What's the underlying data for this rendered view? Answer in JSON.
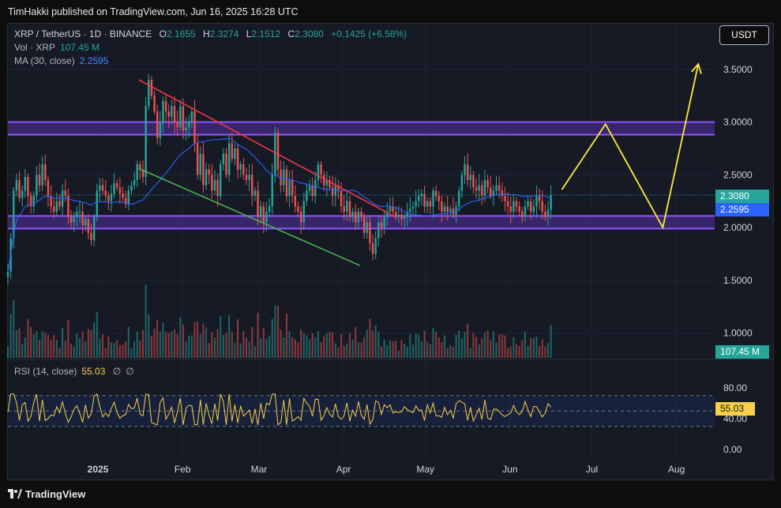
{
  "header": {
    "published_line": "TimHakki published on TradingView.com, Jun 16, 2025 16:28 UTC"
  },
  "legend": {
    "symbol": "XRP / TetherUS · 1D · BINANCE",
    "o_label": "O",
    "o_value": "2.1655",
    "h_label": "H",
    "h_value": "2.3274",
    "l_label": "L",
    "l_value": "2.1512",
    "c_label": "C",
    "c_value": "2.3080",
    "change": "+0.1425 (+6.58%)",
    "vol_label": "Vol · XRP",
    "vol_value": "107.45 M",
    "ma_label": "MA (30, close)",
    "ma_value": "2.2595",
    "rsi_label": "RSI (14, close)",
    "rsi_value": "55.03",
    "rsi_extra1": "∅",
    "rsi_extra2": "∅"
  },
  "currency_button": "USDT",
  "price_tags": {
    "last_price": "2.3080",
    "ma_value": "2.2595",
    "volume": "107.45 M",
    "rsi": "55.03"
  },
  "colors": {
    "up": "#26a69a",
    "down": "#ef5350",
    "ma": "#2962ff",
    "zone": "#7b3fe4",
    "red_line": "#f23645",
    "green_line": "#4caf50",
    "projection": "#ffeb3b",
    "rsi": "#f7d046"
  },
  "footer": {
    "brand": "TradingView"
  },
  "chart_data": {
    "type": "candlestick",
    "title": "XRP / TetherUS · 1D · BINANCE",
    "price_axis": {
      "ticks": [
        "3.5000",
        "3.0000",
        "2.5000",
        "2.0000",
        "1.5000",
        "1.0000"
      ],
      "values": [
        3.5,
        3.0,
        2.5,
        2.0,
        1.5,
        1.0
      ]
    },
    "x_axis": {
      "labels": [
        "2025",
        "Feb",
        "Mar",
        "Apr",
        "May",
        "Jun",
        "Jul",
        "Aug"
      ],
      "dates": [
        "2025-01-01",
        "2025-02-01",
        "2025-03-01",
        "2025-04-01",
        "2025-05-01",
        "2025-06-01",
        "2025-07-01",
        "2025-08-01"
      ],
      "start_date": "2024-11-29",
      "end_date": "2025-08-15"
    },
    "closes": [
      1.58,
      1.9,
      2.35,
      2.45,
      2.28,
      2.35,
      2.48,
      2.3,
      2.2,
      2.3,
      2.5,
      2.4,
      2.6,
      2.45,
      2.3,
      2.2,
      2.15,
      2.25,
      2.2,
      2.35,
      2.3,
      2.1,
      2.05,
      2.1,
      2.15,
      2.15,
      2.02,
      2.08,
      1.95,
      1.88,
      2.1,
      2.35,
      2.4,
      2.35,
      2.3,
      2.25,
      2.32,
      2.42,
      2.38,
      2.32,
      2.28,
      2.22,
      2.35,
      2.4,
      2.45,
      2.6,
      2.55,
      2.48,
      3.15,
      3.4,
      3.25,
      3.1,
      2.85,
      3.0,
      3.2,
      3.1,
      3.05,
      3.15,
      3.0,
      2.95,
      3.15,
      2.92,
      2.95,
      3.0,
      3.1,
      2.8,
      2.5,
      2.7,
      2.4,
      2.55,
      2.5,
      2.35,
      2.45,
      2.3,
      2.6,
      2.7,
      2.5,
      2.8,
      2.65,
      2.75,
      2.55,
      2.6,
      2.5,
      2.45,
      2.5,
      2.3,
      2.35,
      2.1,
      2.2,
      2.05,
      2.15,
      2.2,
      2.5,
      2.9,
      2.55,
      2.4,
      2.55,
      2.3,
      2.45,
      2.3,
      2.2,
      2.15,
      2.05,
      2.25,
      2.35,
      2.4,
      2.3,
      2.45,
      2.6,
      2.5,
      2.4,
      2.45,
      2.38,
      2.3,
      2.4,
      2.35,
      2.2,
      2.15,
      2.25,
      2.1,
      2.15,
      2.05,
      2.15,
      2.1,
      1.95,
      2.05,
      1.85,
      1.75,
      1.9,
      2.05,
      2.0,
      2.1,
      2.15,
      2.2,
      2.15,
      2.1,
      2.12,
      2.08,
      2.1,
      2.15,
      2.18,
      2.2,
      2.25,
      2.3,
      2.32,
      2.2,
      2.25,
      2.2,
      2.35,
      2.3,
      2.25,
      2.15,
      2.2,
      2.15,
      2.18,
      2.12,
      2.2,
      2.35,
      2.5,
      2.6,
      2.45,
      2.5,
      2.38,
      2.35,
      2.4,
      2.3,
      2.45,
      2.38,
      2.3,
      2.35,
      2.4,
      2.35,
      2.3,
      2.25,
      2.2,
      2.15,
      2.25,
      2.2,
      2.15,
      2.1,
      2.2,
      2.25,
      2.15,
      2.2,
      2.3,
      2.25,
      2.15,
      2.1,
      2.17,
      2.308
    ],
    "ma": {
      "label": "MA (30, close)",
      "last": 2.2595
    },
    "volume": {
      "label": "Vol · XRP",
      "last": "107.45 M",
      "ticks": [
        "107.45 M"
      ]
    },
    "zones": [
      {
        "low": 2.88,
        "high": 3.0
      },
      {
        "low": 1.99,
        "high": 2.11
      }
    ],
    "trendlines": [
      {
        "name": "descending-resistance",
        "from": {
          "date": "2025-01-16",
          "price": 3.4
        },
        "to": {
          "date": "2025-04-20",
          "price": 2.1
        }
      },
      {
        "name": "descending-support",
        "from": {
          "date": "2025-01-16",
          "price": 2.56
        },
        "to": {
          "date": "2025-04-07",
          "price": 1.64
        }
      }
    ],
    "projection": [
      {
        "date": "2025-06-20",
        "price": 2.36
      },
      {
        "date": "2025-07-06",
        "price": 2.98
      },
      {
        "date": "2025-07-27",
        "price": 2.0
      },
      {
        "date": "2025-08-09",
        "price": 3.55
      }
    ],
    "rsi": {
      "label": "RSI (14, close)",
      "last": 55.03,
      "ticks": [
        "80.00",
        "40.00",
        "0.00"
      ],
      "tick_values": [
        80,
        40,
        0
      ],
      "upper": 70,
      "lower": 30,
      "middle": 50
    }
  }
}
